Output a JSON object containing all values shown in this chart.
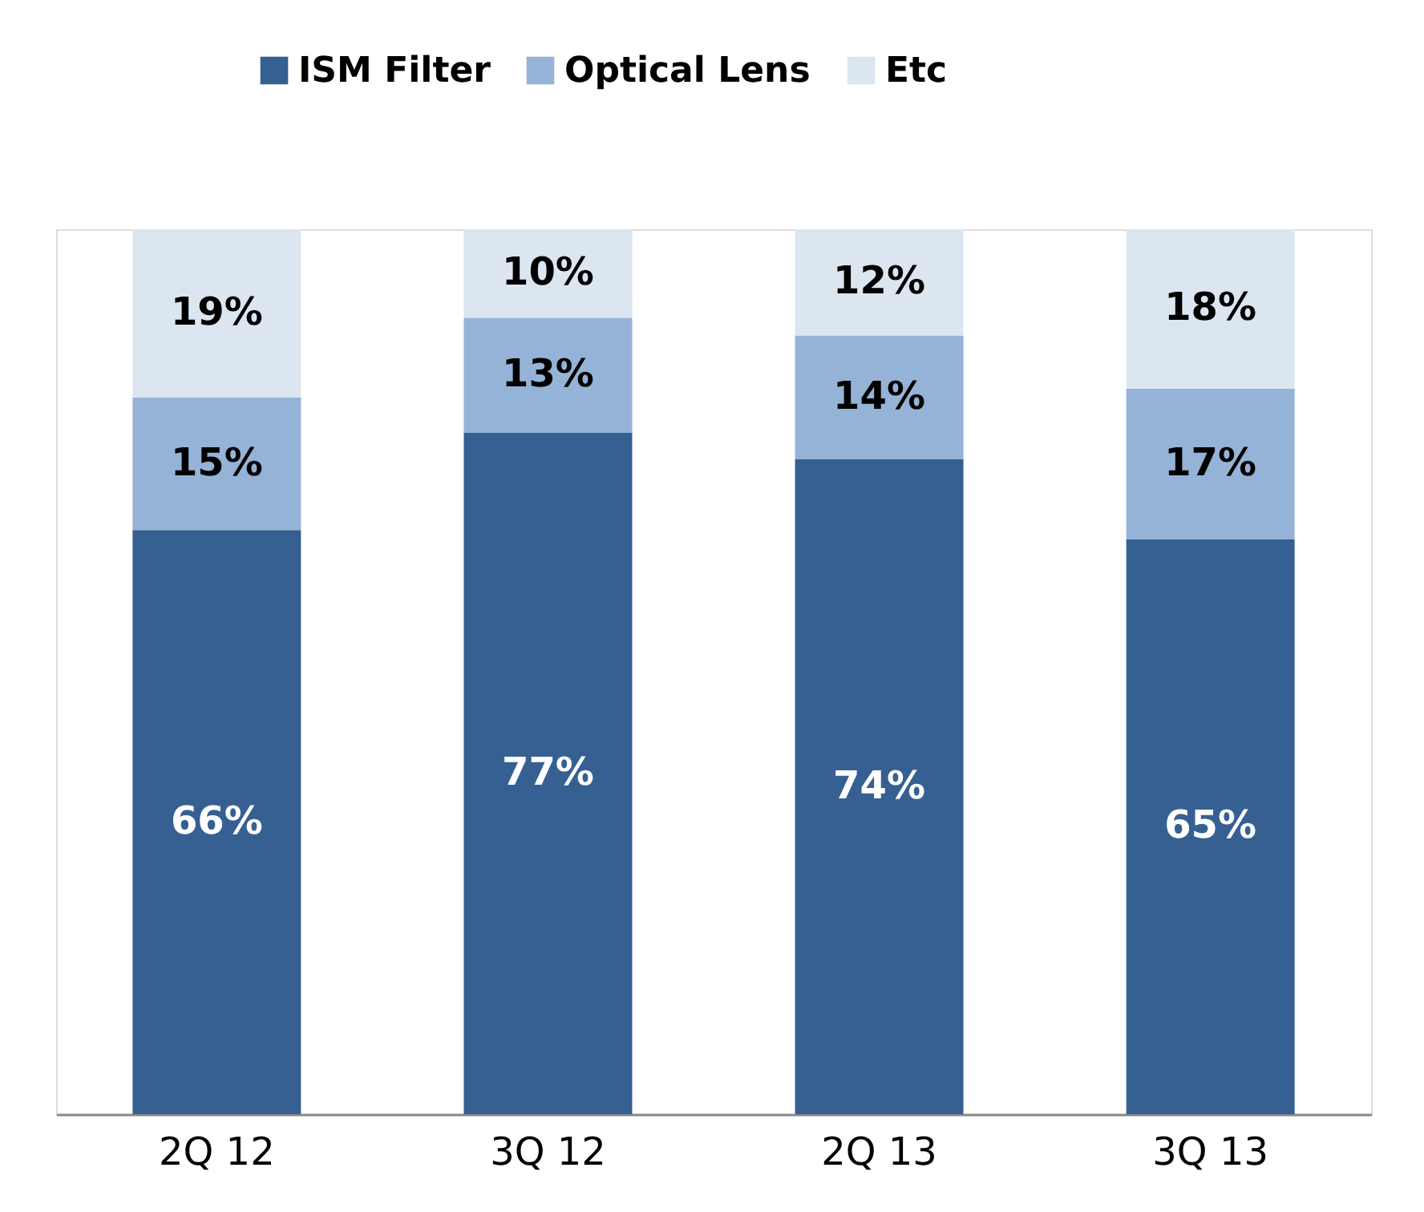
{
  "chart_data": {
    "type": "bar",
    "stacked": true,
    "categories": [
      "2Q 12",
      "3Q 12",
      "2Q 13",
      "3Q 13"
    ],
    "series": [
      {
        "name": "ISM Filter",
        "color": "#366092",
        "values": [
          66,
          77,
          74,
          65
        ],
        "value_labels": [
          "66%",
          "77%",
          "74%",
          "65%"
        ]
      },
      {
        "name": "Optical Lens",
        "color": "#95b3d7",
        "values": [
          15,
          13,
          14,
          17
        ],
        "value_labels": [
          "15%",
          "13%",
          "14%",
          "17%"
        ]
      },
      {
        "name": "Etc",
        "color": "#dce6f1",
        "values": [
          19,
          10,
          12,
          18
        ],
        "value_labels": [
          "19%",
          "10%",
          "12%",
          "18%"
        ]
      }
    ],
    "legend": "top",
    "grid": false,
    "tick_labels": "x"
  }
}
